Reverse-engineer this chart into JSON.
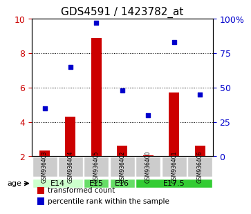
{
  "title": "GDS4591 / 1423782_at",
  "samples": [
    "GSM936403",
    "GSM936404",
    "GSM936405",
    "GSM936402",
    "GSM936400",
    "GSM936401",
    "GSM936406"
  ],
  "transformed_count": [
    2.35,
    4.3,
    8.9,
    2.6,
    2.05,
    5.7,
    2.6
  ],
  "percentile_rank": [
    35,
    65,
    97,
    48,
    30,
    83,
    45
  ],
  "bar_color": "#cc0000",
  "scatter_color": "#0000cc",
  "ylim_left": [
    2,
    10
  ],
  "ylim_right": [
    0,
    100
  ],
  "yticks_left": [
    2,
    4,
    6,
    8,
    10
  ],
  "yticks_right": [
    0,
    25,
    50,
    75,
    100
  ],
  "ytick_labels_left": [
    "2",
    "4",
    "6",
    "8",
    "10"
  ],
  "ytick_labels_right": [
    "0",
    "25",
    "50",
    "75",
    "100%"
  ],
  "age_groups": [
    {
      "label": "E14",
      "samples": [
        0,
        1
      ],
      "color": "#ccffcc"
    },
    {
      "label": "E15",
      "samples": [
        2
      ],
      "color": "#66dd66"
    },
    {
      "label": "E16",
      "samples": [
        3
      ],
      "color": "#66dd66"
    },
    {
      "label": "E17.5",
      "samples": [
        4,
        5,
        6
      ],
      "color": "#33cc33"
    }
  ],
  "background_color": "#ffffff",
  "sample_box_color": "#cccccc",
  "legend_bar_label": "transformed count",
  "legend_scatter_label": "percentile rank within the sample",
  "age_label": "age"
}
